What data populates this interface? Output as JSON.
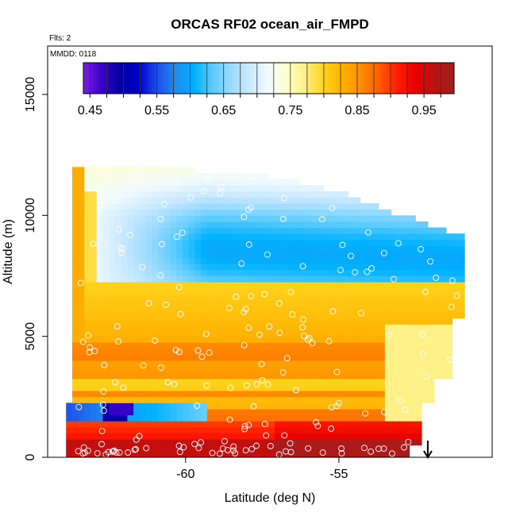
{
  "chart_data": {
    "type": "heatmap",
    "title": "ORCAS RF02 ocean_air_FMPD",
    "flights_note": "Flts: 2",
    "date_note": "MMDD: 0118",
    "xlabel": "Latitude (deg N)",
    "ylabel": "Altitude (m)",
    "xlim": [
      -64.5,
      -50.0
    ],
    "ylim": [
      0,
      17000
    ],
    "x_ticks": [
      -60,
      -55
    ],
    "x_tick_labels": [
      "-60",
      "-55"
    ],
    "y_ticks": [
      0,
      5000,
      10000,
      15000
    ],
    "y_tick_labels": [
      "0",
      "5000",
      "10000",
      "15000"
    ],
    "colorbar": {
      "range": [
        0.44,
        0.995
      ],
      "ticks": [
        0.45,
        0.55,
        0.65,
        0.75,
        0.85,
        0.95
      ],
      "tick_labels": [
        "0.45",
        "0.55",
        "0.65",
        "0.75",
        "0.85",
        "0.95"
      ],
      "colors": [
        "#7a1fe0",
        "#3a00cc",
        "#00009e",
        "#0000cc",
        "#1f4fe8",
        "#1f8cf0",
        "#00b2ff",
        "#5cccff",
        "#9ddcff",
        "#cceaff",
        "#f2fbff",
        "#ffffcc",
        "#ffef80",
        "#ffd21a",
        "#ffb000",
        "#ff8c00",
        "#ff5a00",
        "#ff1a00",
        "#e60000",
        "#b81414",
        "#a02020"
      ]
    },
    "marker": {
      "latitude": -52.1,
      "type": "down-arrow"
    },
    "grid": false,
    "legend": "colorbar top"
  }
}
